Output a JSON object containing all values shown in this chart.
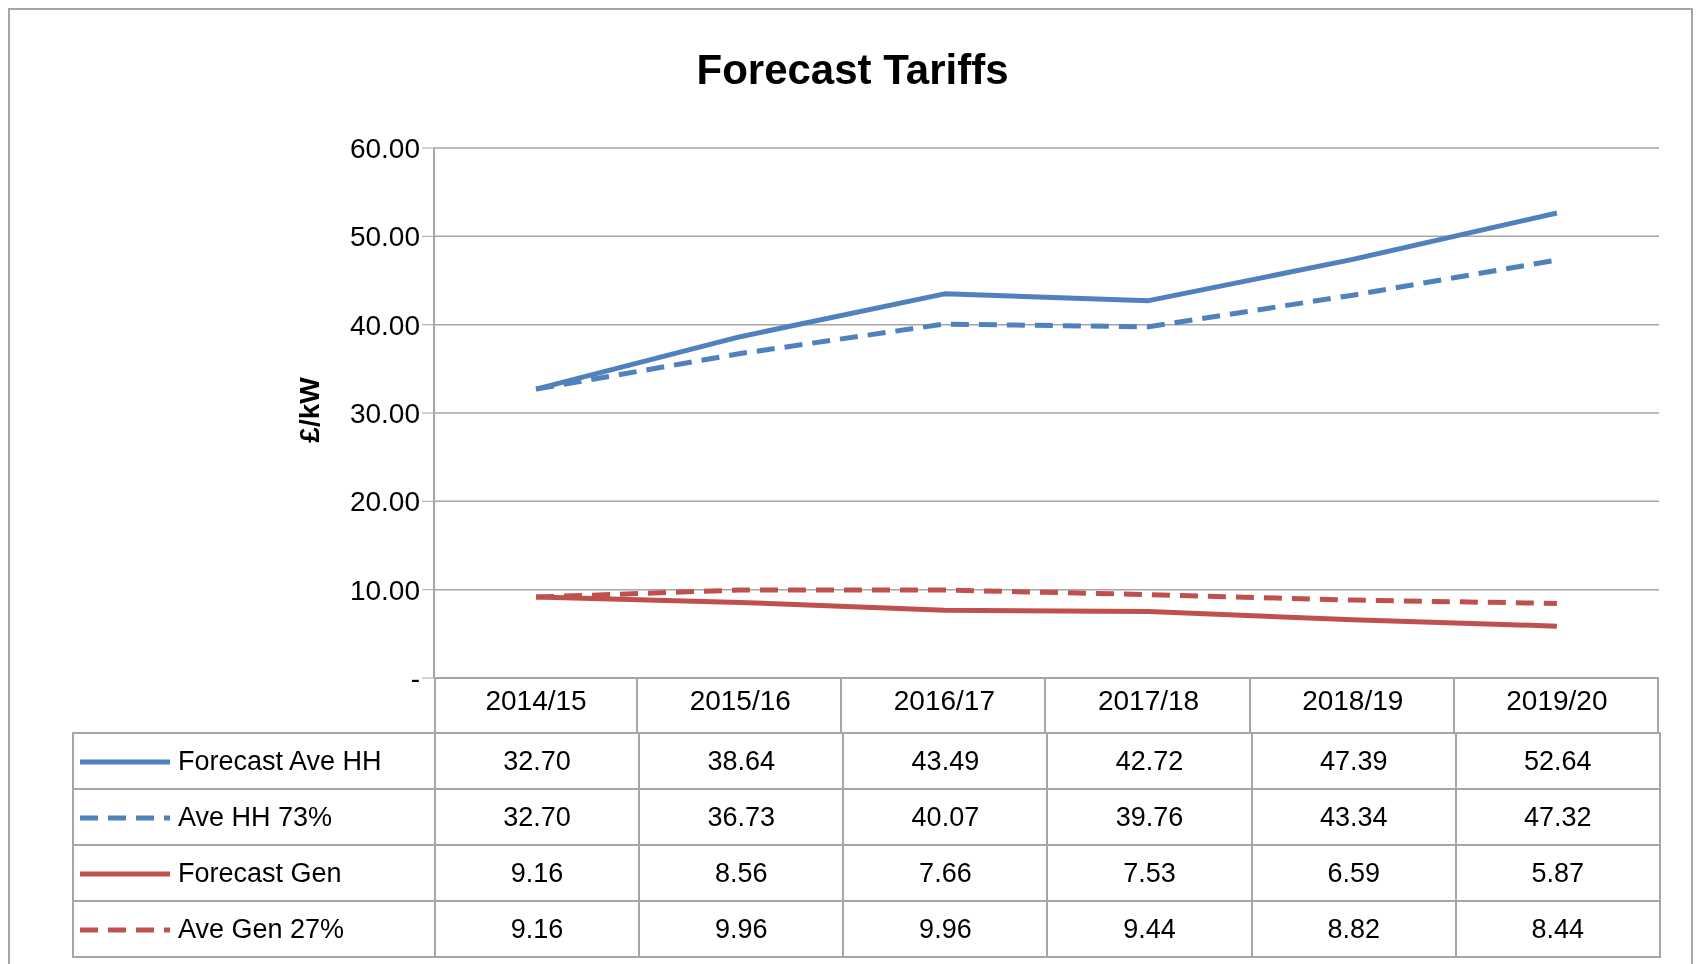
{
  "chart_data": {
    "type": "line",
    "title": "Forecast Tariffs",
    "ylabel": "£/kW",
    "categories": [
      "2014/15",
      "2015/16",
      "2016/17",
      "2017/18",
      "2018/19",
      "2019/20"
    ],
    "series": [
      {
        "name": "Forecast Ave HH",
        "color": "#4f81bd",
        "line_style": "solid",
        "values": [
          32.7,
          38.64,
          43.49,
          42.72,
          47.39,
          52.64
        ],
        "value_labels": [
          "32.70",
          "38.64",
          "43.49",
          "42.72",
          "47.39",
          "52.64"
        ]
      },
      {
        "name": "Ave HH 73%",
        "color": "#4f81bd",
        "line_style": "dashed",
        "values": [
          32.7,
          36.73,
          40.07,
          39.76,
          43.34,
          47.32
        ],
        "value_labels": [
          "32.70",
          "36.73",
          "40.07",
          "39.76",
          "43.34",
          "47.32"
        ]
      },
      {
        "name": "Forecast Gen",
        "color": "#c0504d",
        "line_style": "solid",
        "values": [
          9.16,
          8.56,
          7.66,
          7.53,
          6.59,
          5.87
        ],
        "value_labels": [
          "9.16",
          "8.56",
          "7.66",
          "7.53",
          "6.59",
          "5.87"
        ]
      },
      {
        "name": "Ave Gen 27%",
        "color": "#c0504d",
        "line_style": "dashed",
        "values": [
          9.16,
          9.96,
          9.96,
          9.44,
          8.82,
          8.44
        ],
        "value_labels": [
          "9.16",
          "9.96",
          "9.96",
          "9.44",
          "8.82",
          "8.44"
        ]
      }
    ],
    "ylim": [
      0,
      60
    ],
    "yticks": [
      {
        "value": 0,
        "label": "-"
      },
      {
        "value": 10,
        "label": "10.00"
      },
      {
        "value": 20,
        "label": "20.00"
      },
      {
        "value": 30,
        "label": "30.00"
      },
      {
        "value": 40,
        "label": "40.00"
      },
      {
        "value": 50,
        "label": "50.00"
      },
      {
        "value": 60,
        "label": "60.00"
      }
    ],
    "grid": "y",
    "legend": "bottom",
    "marker": "none"
  }
}
